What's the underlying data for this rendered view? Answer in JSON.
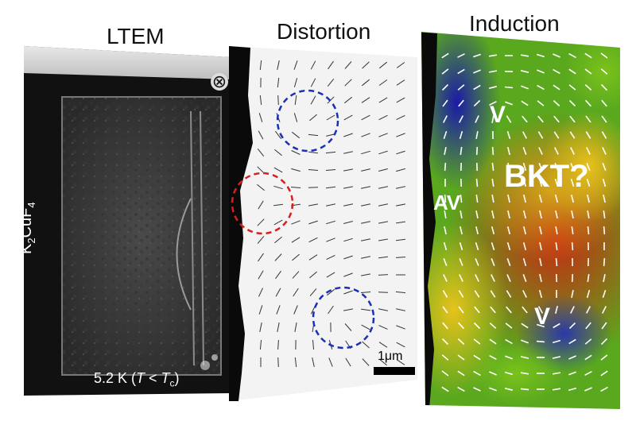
{
  "panels": {
    "ltem": {
      "title": "LTEM",
      "material_prefix": "K",
      "material_sub1": "2",
      "material_mid": "CuF",
      "material_sub2": "4",
      "temp_prefix": "5.2 K (",
      "temp_T": "T",
      "temp_lt": " < ",
      "temp_Tc": "T",
      "temp_c": "c",
      "temp_suffix": ")",
      "field_symbol": "⊗"
    },
    "distortion": {
      "title": "Distortion",
      "scale_bar": "1μm"
    },
    "induction": {
      "title": "Induction",
      "labels": {
        "v_top": "V",
        "av": "AV",
        "bkt": "BKT?",
        "v_bottom": "V"
      }
    }
  },
  "colors": {
    "vortex_circle": "#1a2fb5",
    "antivortex_circle": "#d62020"
  }
}
